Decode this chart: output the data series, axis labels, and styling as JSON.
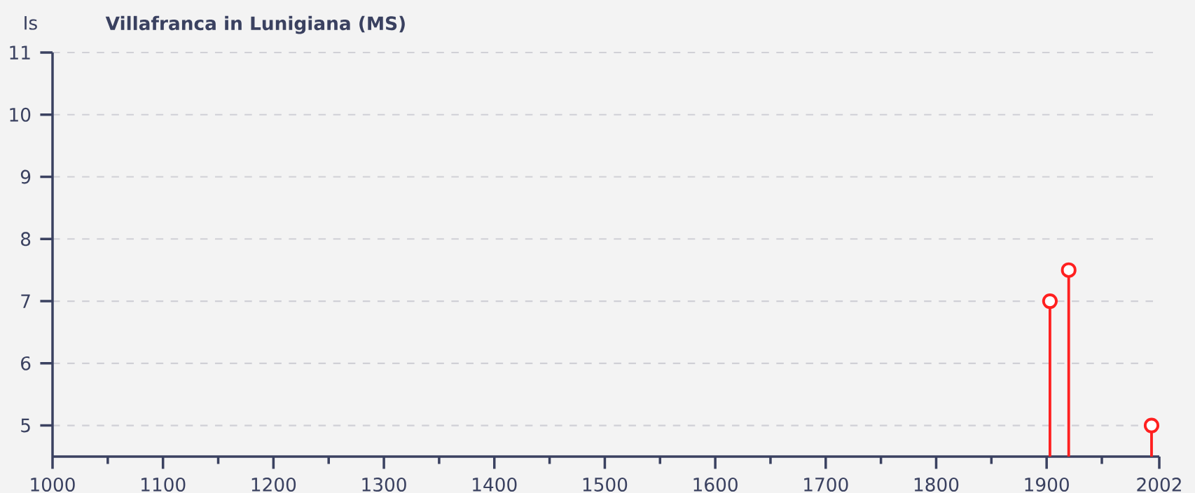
{
  "chart_data": {
    "type": "lollipop",
    "title": "Villafranca in Lunigiana (MS)",
    "ylabel": "Is",
    "x": [
      1903,
      1920,
      1995
    ],
    "values": [
      7,
      7.5,
      5
    ],
    "color": "#ff2020",
    "xlim": [
      1000,
      2002
    ],
    "xticks": [
      1000,
      {
        "value": 1050,
        "label": null
      },
      1100,
      {
        "value": 1150,
        "label": null
      },
      1200,
      {
        "value": 1250,
        "label": null
      },
      1300,
      {
        "value": 1350,
        "label": null
      },
      1400,
      {
        "value": 1450,
        "label": null
      },
      1500,
      {
        "value": 1550,
        "label": null
      },
      1600,
      {
        "value": 1650,
        "label": null
      },
      1700,
      {
        "value": 1750,
        "label": null
      },
      1800,
      {
        "value": 1850,
        "label": null
      },
      1900,
      {
        "value": 1950,
        "label": null
      },
      2002
    ],
    "ylim": [
      4.5,
      11
    ],
    "yticks": [
      5,
      6,
      7,
      8,
      9,
      10,
      11
    ],
    "grid": "y",
    "marker": "circle"
  }
}
